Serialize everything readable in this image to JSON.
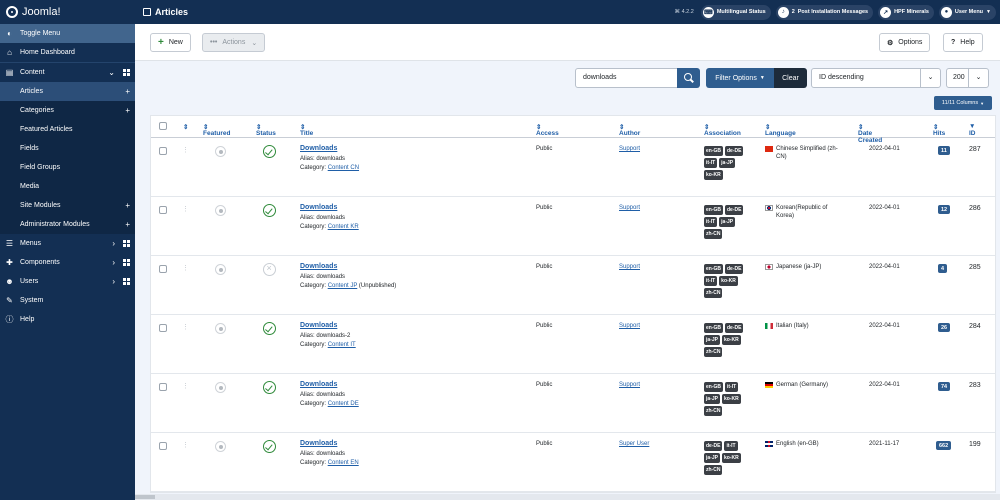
{
  "header": {
    "brand": "Joomla!",
    "page_title": "Articles",
    "version": "⌘ 4.2.2",
    "pills": [
      {
        "label": "Multilingual Status",
        "icon": "language-icon"
      },
      {
        "label": "Post Installation Messages",
        "count": "2",
        "icon": "bell-icon"
      },
      {
        "label": "HPF Minerals",
        "icon": "external-link-icon"
      },
      {
        "label": "User Menu",
        "icon": "user-icon"
      }
    ]
  },
  "sidebar": {
    "items": [
      {
        "label": "Toggle Menu",
        "icon": "toggle-icon"
      },
      {
        "label": "Home Dashboard",
        "icon": "home-icon"
      },
      {
        "label": "Content",
        "icon": "file-icon"
      },
      {
        "label": "Articles"
      },
      {
        "label": "Categories"
      },
      {
        "label": "Featured Articles"
      },
      {
        "label": "Fields"
      },
      {
        "label": "Field Groups"
      },
      {
        "label": "Media"
      },
      {
        "label": "Site Modules"
      },
      {
        "label": "Administrator Modules"
      },
      {
        "label": "Menus",
        "icon": "list-icon"
      },
      {
        "label": "Components",
        "icon": "puzzle-icon"
      },
      {
        "label": "Users",
        "icon": "users-icon"
      },
      {
        "label": "System",
        "icon": "wrench-icon"
      },
      {
        "label": "Help",
        "icon": "info-icon"
      }
    ]
  },
  "toolbar": {
    "new_label": "New",
    "actions_label": "Actions",
    "options_label": "Options",
    "help_label": "Help"
  },
  "filters": {
    "search_value": "downloads",
    "filter_options_label": "Filter Options",
    "clear_label": "Clear",
    "sort_value": "ID descending",
    "limit_value": "200",
    "columns_label": "11/11 Columns"
  },
  "table": {
    "headers": [
      "Featured",
      "Status",
      "Title",
      "Access",
      "Author",
      "Association",
      "Language",
      "Date Created",
      "Hits",
      "ID"
    ],
    "rows": [
      {
        "title": "Downloads",
        "alias": "Alias: downloads",
        "category_prefix": "Category: ",
        "category": "Content CN",
        "category_suffix": "",
        "status": "published",
        "access": "Public",
        "author": "Support",
        "assoc": [
          "en-GB",
          "de-DE",
          "it-IT",
          "ja-JP",
          "ko-KR"
        ],
        "language": "Chinese Simplified (zh-CN)",
        "flag": "cn",
        "date": "2022-04-01",
        "hits": "11",
        "id": "287"
      },
      {
        "title": "Downloads",
        "alias": "Alias: downloads",
        "category_prefix": "Category: ",
        "category": "Content KR",
        "category_suffix": "",
        "status": "published",
        "access": "Public",
        "author": "Support",
        "assoc": [
          "en-GB",
          "de-DE",
          "it-IT",
          "ja-JP",
          "zh-CN"
        ],
        "language": "Korean(Republic of Korea)",
        "flag": "kr",
        "date": "2022-04-01",
        "hits": "12",
        "id": "286"
      },
      {
        "title": "Downloads",
        "alias": "Alias: downloads",
        "category_prefix": "Category: ",
        "category": "Content JP",
        "category_suffix": " (Unpublished)",
        "status": "unpublished",
        "access": "Public",
        "author": "Support",
        "assoc": [
          "en-GB",
          "de-DE",
          "it-IT",
          "ko-KR",
          "zh-CN"
        ],
        "language": "Japanese (ja-JP)",
        "flag": "jp",
        "date": "2022-04-01",
        "hits": "4",
        "id": "285"
      },
      {
        "title": "Downloads",
        "alias": "Alias: downloads-2",
        "category_prefix": "Category: ",
        "category": "Content IT",
        "category_suffix": "",
        "status": "published",
        "access": "Public",
        "author": "Support",
        "assoc": [
          "en-GB",
          "de-DE",
          "ja-JP",
          "ko-KR",
          "zh-CN"
        ],
        "language": "Italian (Italy)",
        "flag": "it",
        "date": "2022-04-01",
        "hits": "26",
        "id": "284"
      },
      {
        "title": "Downloads",
        "alias": "Alias: downloads",
        "category_prefix": "Category: ",
        "category": "Content DE",
        "category_suffix": "",
        "status": "published",
        "access": "Public",
        "author": "Support",
        "assoc": [
          "en-GB",
          "it-IT",
          "ja-JP",
          "ko-KR",
          "zh-CN"
        ],
        "language": "German (Germany)",
        "flag": "de",
        "date": "2022-04-01",
        "hits": "74",
        "id": "283"
      },
      {
        "title": "Downloads",
        "alias": "Alias: downloads",
        "category_prefix": "Category: ",
        "category": "Content EN",
        "category_suffix": "",
        "status": "published",
        "access": "Public",
        "author": "Super User",
        "assoc": [
          "de-DE",
          "it-IT",
          "ja-JP",
          "ko-KR",
          "zh-CN"
        ],
        "language": "English (en-GB)",
        "flag": "gb",
        "date": "2021-11-17",
        "hits": "662",
        "id": "199"
      }
    ]
  }
}
